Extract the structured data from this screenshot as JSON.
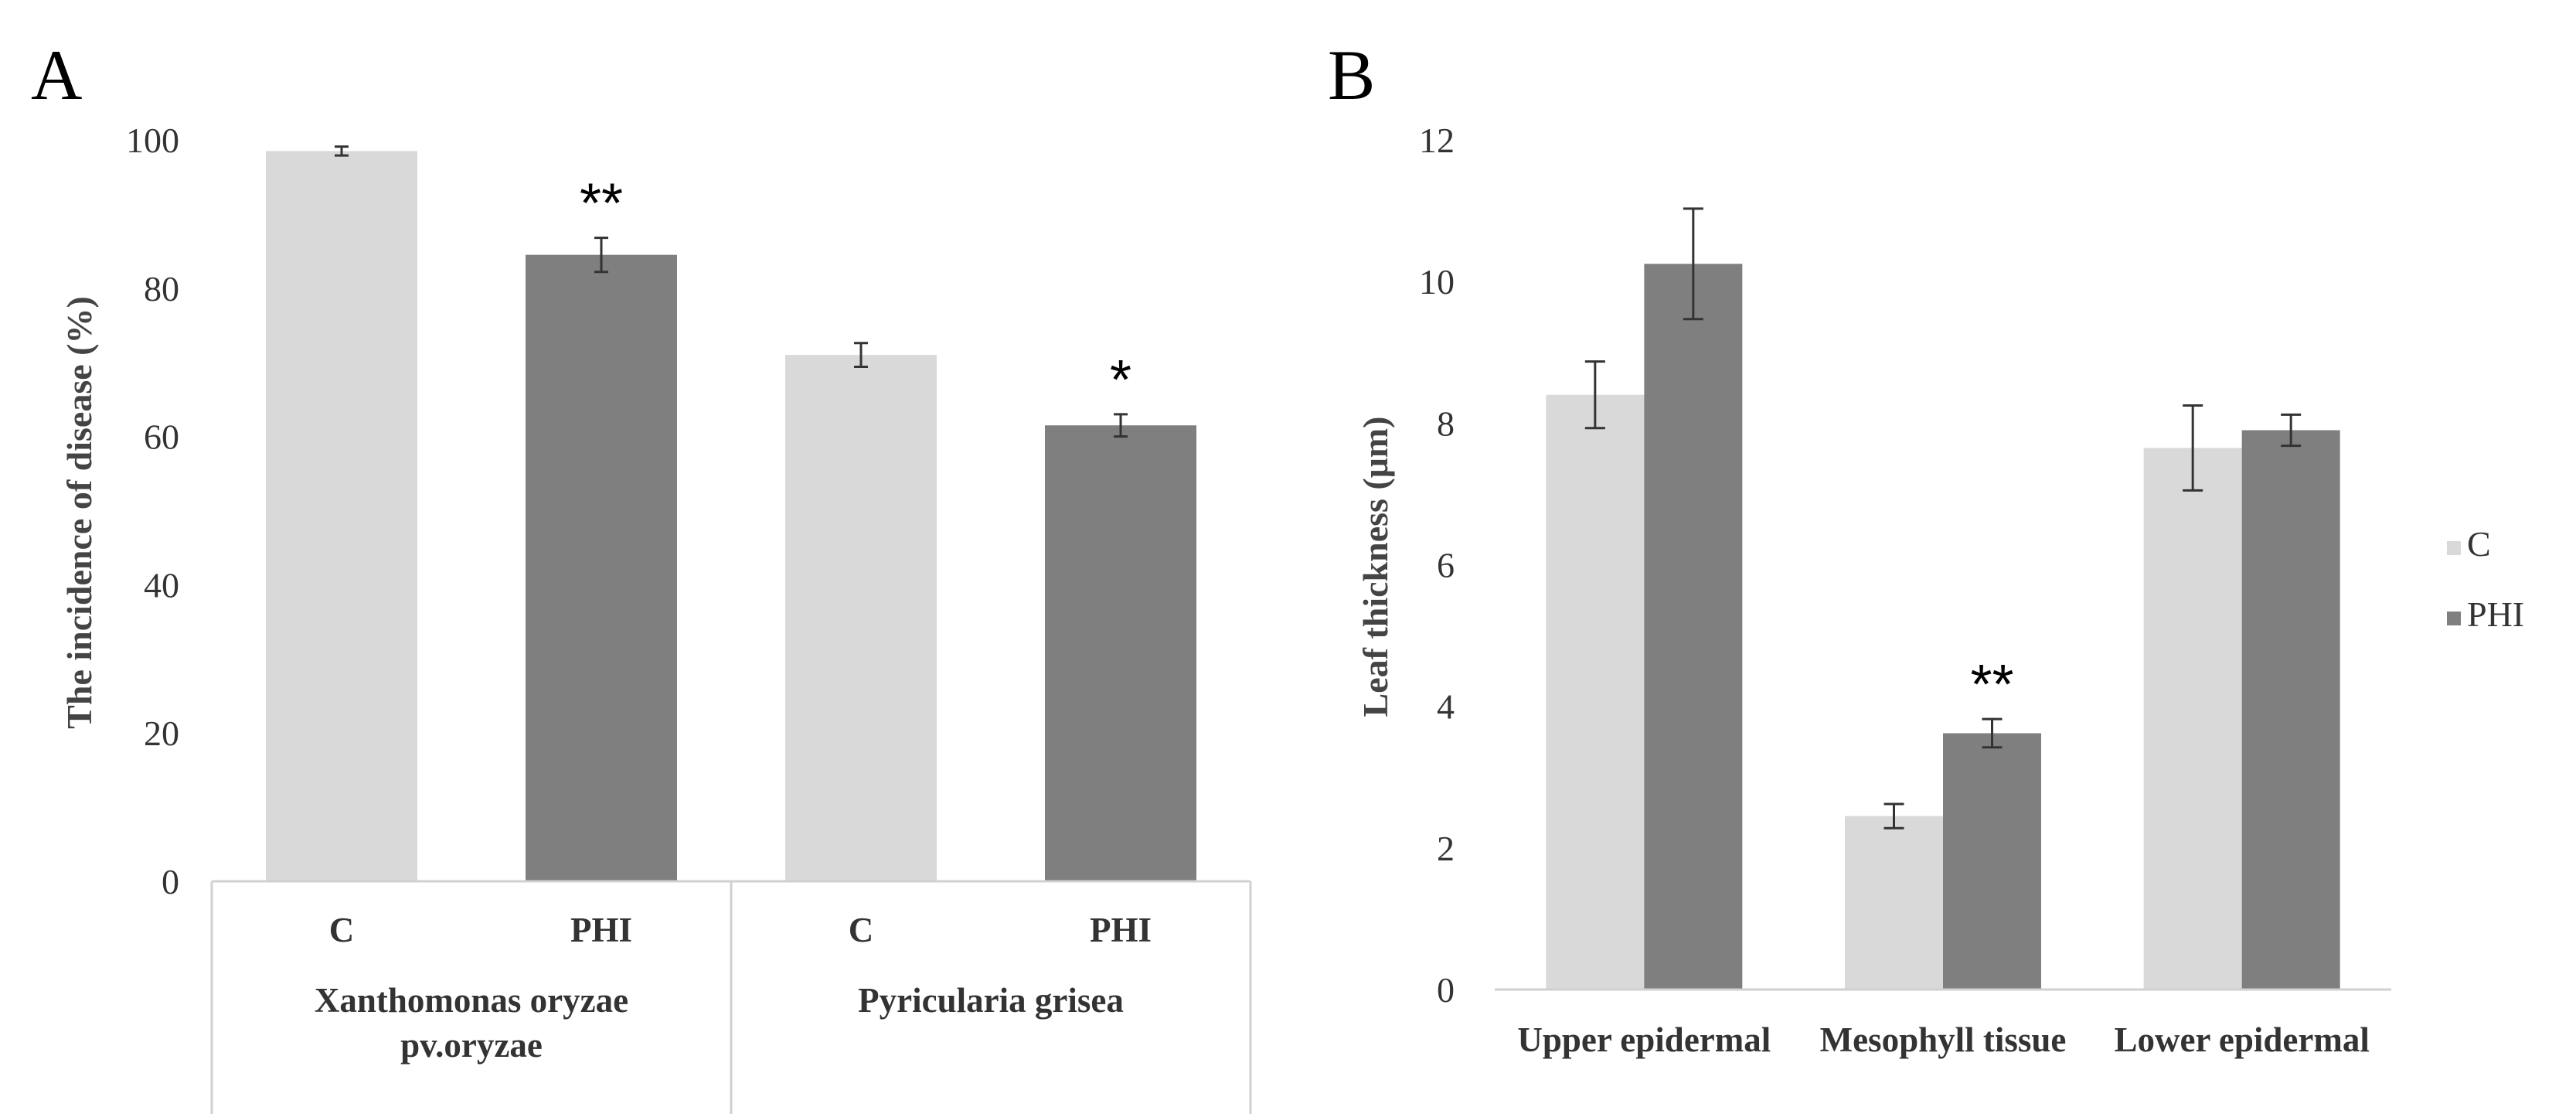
{
  "chart_data": [
    {
      "panel": "A",
      "type": "bar",
      "ylabel": "The incidence of disease (%)",
      "ylim": [
        0,
        100
      ],
      "yticks": [
        "0",
        "20",
        "40",
        "60",
        "80",
        "100"
      ],
      "groups": [
        {
          "label_lines": [
            "Xanthomonas oryzae",
            "pv.oryzae"
          ],
          "bars": [
            {
              "label": "C",
              "series": "C",
              "value": 98.5,
              "error": 0.6,
              "annotation": ""
            },
            {
              "label": "PHI",
              "series": "PHI",
              "value": 84.5,
              "error": 2.3,
              "annotation": "**"
            }
          ]
        },
        {
          "label_lines": [
            "Pyricularia grisea"
          ],
          "bars": [
            {
              "label": "C",
              "series": "C",
              "value": 71,
              "error": 1.6,
              "annotation": ""
            },
            {
              "label": "PHI",
              "series": "PHI",
              "value": 61.5,
              "error": 1.5,
              "annotation": "*"
            }
          ]
        }
      ],
      "colors": {
        "C": "#d9d9d9",
        "PHI": "#7f7f7f"
      }
    },
    {
      "panel": "B",
      "type": "bar",
      "ylabel": "Leaf thickness (μm)",
      "ylim": [
        0,
        12
      ],
      "yticks": [
        "0",
        "2",
        "4",
        "6",
        "8",
        "10",
        "12"
      ],
      "categories": [
        "Upper epidermal",
        "Mesophyll tissue",
        "Lower epidermal"
      ],
      "series": [
        {
          "name": "C",
          "values": [
            8.4,
            2.45,
            7.65
          ],
          "errors": [
            0.47,
            0.17,
            0.6
          ],
          "annotations": [
            "",
            "",
            ""
          ]
        },
        {
          "name": "PHI",
          "values": [
            10.25,
            3.62,
            7.9
          ],
          "errors": [
            0.78,
            0.2,
            0.22
          ],
          "annotations": [
            "",
            "**",
            ""
          ]
        }
      ],
      "legend": [
        "C",
        "PHI"
      ],
      "legend_position": "right",
      "colors": {
        "C": "#d9d9d9",
        "PHI": "#7f7f7f"
      }
    }
  ]
}
